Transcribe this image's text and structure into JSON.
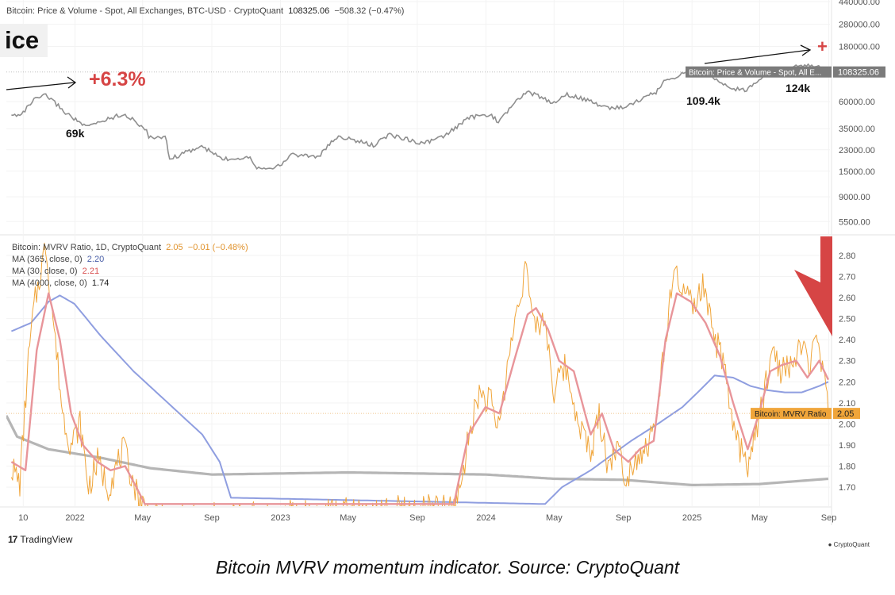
{
  "header": {
    "price_title": "Bitcoin: Price & Volume - Spot, All Exchanges, BTC-USD · CryptoQuant",
    "price_value": "108325.06",
    "price_change": "−508.32 (−0.47%)",
    "mvrv_title": "Bitcoin: MVRV Ratio, 1D, CryptoQuant",
    "mvrv_value": "2.05",
    "mvrv_change": "−0.01 (−0.48%)",
    "ma365_label": "MA (365, close, 0)",
    "ma365_value": "2.20",
    "ma30_label": "MA (30, close, 0)",
    "ma30_value": "2.21",
    "ma4000_label": "MA (4000, close, 0)",
    "ma4000_value": "1.74"
  },
  "annotations": {
    "title_fragment": "ice",
    "pct_gain": "+6.3%",
    "peak_69k": "69k",
    "peak_109k": "109.4k",
    "peak_124k": "124k",
    "plus_sign": "+",
    "price_tag_label": "Bitcoin: Price & Volume - Spot, All E...",
    "price_tag_value": "108325.06",
    "mvrv_tag_label": "Bitcoin: MVRV Ratio",
    "mvrv_tag_value": "2.05"
  },
  "footer": {
    "tradingview": "TradingView",
    "tv_logo": "17",
    "cryptoquant": "CryptoQuant",
    "caption": "Bitcoin MVRV momentum indicator. Source: CryptoQuant"
  },
  "colors": {
    "price": "#8f8f8f",
    "mvrv": "#f0a53a",
    "ma30": "#e8959a",
    "ma365": "#8f9ee0",
    "ma4000": "#b5b5b5",
    "accent_red": "#d64545",
    "tag_orange": "#f0a53a",
    "tag_gray": "#7b7b7b"
  },
  "chart_data": [
    {
      "type": "line",
      "title": "Bitcoin: Price & Volume - Spot, All Exchanges, BTC-USD · CryptoQuant",
      "scale": "log",
      "y_ticks": [
        440000,
        280000,
        180000,
        108325.06,
        60000,
        35000,
        23000,
        15000,
        9000,
        5500
      ],
      "y_tick_labels": [
        "440000.00",
        "280000.00",
        "180000.00",
        "108325.06",
        "60000.00",
        "35000.00",
        "23000.00",
        "15000.00",
        "9000.00",
        "5500.00"
      ],
      "ylim": [
        4500,
        440000
      ],
      "series": [
        {
          "x": [
            "2021-09-10",
            "2021-10-01",
            "2021-10-20",
            "2021-11-10",
            "2021-12-15",
            "2022-01-20",
            "2022-03-28",
            "2022-05-08",
            "2022-05-12",
            "2022-06-10",
            "2022-06-18",
            "2022-08-14",
            "2022-09-20",
            "2022-11-08",
            "2022-11-20",
            "2022-12-31",
            "2023-01-20",
            "2023-03-10",
            "2023-04-14",
            "2023-06-15",
            "2023-07-14",
            "2023-09-11",
            "2023-10-20",
            "2023-12-05",
            "2024-01-11",
            "2024-01-23",
            "2024-03-14",
            "2024-05-01",
            "2024-05-21",
            "2024-08-05",
            "2024-09-06",
            "2024-10-29",
            "2024-11-12",
            "2024-12-17",
            "2025-01-20",
            "2025-03-10",
            "2025-04-08",
            "2025-05-22",
            "2025-07-14",
            "2025-08-14",
            "2025-08-31"
          ],
          "values": [
            45000,
            48000,
            62000,
            68000,
            48000,
            36000,
            47000,
            34000,
            29000,
            30000,
            19000,
            24500,
            19000,
            20000,
            16000,
            16500,
            21000,
            20000,
            30000,
            25000,
            31000,
            26000,
            30000,
            44000,
            46000,
            39000,
            73000,
            58000,
            70000,
            53000,
            54000,
            72000,
            89000,
            106000,
            109400,
            78000,
            76000,
            111000,
            122000,
            124000,
            108325.06
          ]
        }
      ]
    },
    {
      "type": "line",
      "title": "Bitcoin: MVRV Ratio, 1D, CryptoQuant",
      "y_ticks": [
        1.7,
        1.8,
        1.9,
        2.0,
        2.05,
        2.1,
        2.2,
        2.3,
        2.4,
        2.5,
        2.6,
        2.7,
        2.8
      ],
      "y_tick_labels": [
        "1.70",
        "1.80",
        "1.90",
        "2.00",
        "2.05",
        "2.10",
        "2.20",
        "2.30",
        "2.40",
        "2.50",
        "2.60",
        "2.70",
        "2.80"
      ],
      "ylim": [
        1.61,
        2.89
      ],
      "x_tick_labels": [
        "10",
        "2022",
        "May",
        "Sep",
        "2023",
        "May",
        "Sep",
        "2024",
        "May",
        "Sep",
        "2025",
        "May",
        "Sep"
      ],
      "x_tick_dates": [
        "2021-10-01",
        "2022-01-01",
        "2022-05-01",
        "2022-09-01",
        "2023-01-01",
        "2023-05-01",
        "2023-09-01",
        "2024-01-01",
        "2024-05-01",
        "2024-09-01",
        "2025-01-01",
        "2025-05-01",
        "2025-09-01"
      ],
      "series": [
        {
          "name": "Bitcoin: MVRV Ratio",
          "x": [
            "2021-09-10",
            "2021-09-25",
            "2021-10-10",
            "2021-10-20",
            "2021-11-10",
            "2021-11-25",
            "2021-12-10",
            "2021-12-25",
            "2022-01-10",
            "2022-01-25",
            "2022-02-10",
            "2022-03-01",
            "2022-03-28",
            "2022-04-20",
            "2022-05-10",
            "2022-05-20",
            "2023-11-05",
            "2023-11-20",
            "2023-12-05",
            "2023-12-20",
            "2024-01-10",
            "2024-01-23",
            "2024-02-10",
            "2024-02-28",
            "2024-03-13",
            "2024-03-25",
            "2024-04-15",
            "2024-05-01",
            "2024-05-20",
            "2024-06-10",
            "2024-07-05",
            "2024-07-20",
            "2024-08-05",
            "2024-08-20",
            "2024-09-06",
            "2024-09-25",
            "2024-10-15",
            "2024-10-29",
            "2024-11-12",
            "2024-11-25",
            "2024-12-05",
            "2024-12-17",
            "2025-01-05",
            "2025-01-20",
            "2025-02-05",
            "2025-02-25",
            "2025-03-10",
            "2025-03-25",
            "2025-04-08",
            "2025-04-25",
            "2025-05-10",
            "2025-05-22",
            "2025-06-10",
            "2025-06-25",
            "2025-07-14",
            "2025-07-30",
            "2025-08-14",
            "2025-08-25",
            "2025-08-31"
          ],
          "values": [
            1.8,
            1.72,
            2.3,
            2.55,
            2.85,
            2.45,
            2.05,
            1.9,
            2.0,
            1.7,
            1.82,
            1.7,
            1.88,
            1.68,
            1.58,
            1.55,
            1.6,
            1.75,
            2.0,
            2.15,
            2.1,
            1.98,
            2.3,
            2.6,
            2.75,
            2.45,
            2.5,
            2.15,
            2.28,
            2.05,
            1.85,
            2.05,
            1.8,
            1.9,
            1.75,
            1.85,
            1.9,
            2.0,
            2.35,
            2.62,
            2.7,
            2.62,
            2.55,
            2.65,
            2.45,
            2.3,
            2.05,
            1.9,
            1.8,
            1.95,
            2.15,
            2.35,
            2.25,
            2.28,
            2.35,
            2.3,
            2.38,
            2.18,
            2.05
          ]
        },
        {
          "name": "MA (30, close, 0)",
          "x": [
            "2021-09-10",
            "2021-10-05",
            "2021-10-25",
            "2021-11-15",
            "2021-12-05",
            "2021-12-25",
            "2022-01-15",
            "2022-02-10",
            "2022-03-05",
            "2022-03-31",
            "2022-04-20",
            "2022-05-05",
            "2023-11-05",
            "2023-12-01",
            "2023-12-31",
            "2024-01-25",
            "2024-02-20",
            "2024-03-15",
            "2024-03-30",
            "2024-04-20",
            "2024-05-10",
            "2024-06-05",
            "2024-07-05",
            "2024-07-25",
            "2024-08-15",
            "2024-09-10",
            "2024-09-30",
            "2024-10-25",
            "2024-11-15",
            "2024-12-05",
            "2024-12-30",
            "2025-01-25",
            "2025-02-20",
            "2025-03-15",
            "2025-04-10",
            "2025-04-30",
            "2025-05-20",
            "2025-06-10",
            "2025-07-05",
            "2025-07-25",
            "2025-08-15",
            "2025-08-31"
          ],
          "values": [
            1.82,
            1.78,
            2.35,
            2.62,
            2.4,
            2.05,
            1.9,
            1.82,
            1.78,
            1.8,
            1.7,
            1.62,
            1.62,
            1.95,
            2.08,
            2.05,
            2.3,
            2.52,
            2.55,
            2.45,
            2.3,
            2.25,
            1.95,
            2.05,
            1.88,
            1.82,
            1.88,
            1.92,
            2.4,
            2.62,
            2.58,
            2.48,
            2.32,
            2.1,
            1.88,
            2.05,
            2.25,
            2.28,
            2.3,
            2.22,
            2.3,
            2.21
          ]
        },
        {
          "name": "MA (365, close, 0)",
          "x": [
            "2021-09-10",
            "2021-10-15",
            "2021-11-15",
            "2021-12-05",
            "2021-12-31",
            "2022-02-15",
            "2022-04-15",
            "2022-06-15",
            "2022-08-15",
            "2022-09-15",
            "2022-10-05",
            "2024-04-15",
            "2024-05-15",
            "2024-07-05",
            "2024-08-15",
            "2024-09-15",
            "2024-11-01",
            "2024-12-15",
            "2025-01-15",
            "2025-02-10",
            "2025-03-15",
            "2025-04-15",
            "2025-05-15",
            "2025-06-15",
            "2025-07-15",
            "2025-08-15",
            "2025-08-31"
          ],
          "values": [
            2.44,
            2.48,
            2.58,
            2.61,
            2.57,
            2.42,
            2.25,
            2.1,
            1.95,
            1.82,
            1.65,
            1.62,
            1.7,
            1.78,
            1.86,
            1.92,
            2.0,
            2.08,
            2.16,
            2.23,
            2.22,
            2.18,
            2.16,
            2.15,
            2.15,
            2.18,
            2.2
          ]
        },
        {
          "name": "MA (4000, close, 0)",
          "x": [
            "2021-09-01",
            "2021-09-20",
            "2021-11-15",
            "2022-02-15",
            "2022-05-15",
            "2022-09-01",
            "2023-01-01",
            "2023-05-01",
            "2023-09-01",
            "2024-01-01",
            "2024-05-01",
            "2024-09-01",
            "2025-01-01",
            "2025-05-01",
            "2025-08-31"
          ],
          "values": [
            2.04,
            1.94,
            1.88,
            1.84,
            1.79,
            1.76,
            1.765,
            1.77,
            1.765,
            1.76,
            1.74,
            1.735,
            1.71,
            1.715,
            1.74
          ]
        }
      ]
    }
  ]
}
